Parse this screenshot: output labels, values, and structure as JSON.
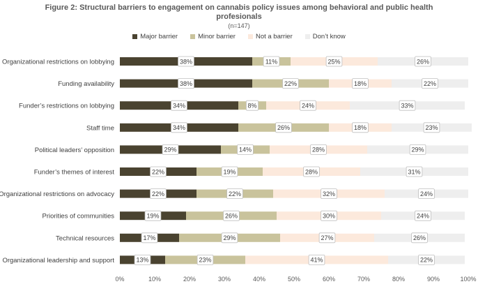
{
  "chart_data": {
    "type": "bar",
    "orientation": "horizontal",
    "stacked": true,
    "title_line1": "Figure 2: Structural barriers to engagement on cannabis policy issues among behavioral and public health",
    "title_line2": "profesionals",
    "subtitle": "(n=147)",
    "categories": [
      "Organizational restrictions on lobbying",
      "Funding availability",
      "Funder’s restrictions on lobbying",
      "Staff time",
      "Political leaders’ opposition",
      "Funder’s themes of interest",
      "Organizational restrictions on advocacy",
      "Priorities of communities",
      "Technical resources",
      "Organizational leadership and support"
    ],
    "series": [
      {
        "name": "Major barrier",
        "color": "#4a4330",
        "values": [
          38,
          38,
          34,
          34,
          29,
          22,
          22,
          19,
          17,
          13
        ]
      },
      {
        "name": "Minor barrier",
        "color": "#c9c39c",
        "values": [
          11,
          22,
          8,
          26,
          14,
          19,
          22,
          26,
          29,
          23
        ]
      },
      {
        "name": "Not a barrier",
        "color": "#fce9dc",
        "values": [
          25,
          18,
          24,
          18,
          28,
          28,
          32,
          30,
          27,
          41
        ]
      },
      {
        "name": "Don’t know",
        "color": "#eeeeee",
        "values": [
          26,
          22,
          33,
          23,
          29,
          31,
          24,
          24,
          26,
          22
        ]
      }
    ],
    "label_suffix": "%",
    "xlim": [
      0,
      100
    ],
    "x_ticks": [
      "0%",
      "10%",
      "20%",
      "30%",
      "40%",
      "50%",
      "60%",
      "70%",
      "80%",
      "90%",
      "100%"
    ],
    "grid": false,
    "legend_position": "top"
  }
}
